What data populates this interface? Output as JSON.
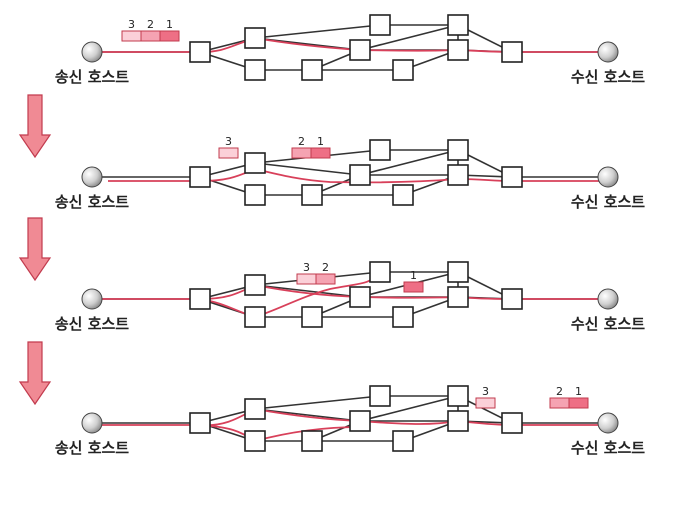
{
  "hosts": {
    "sender": "송신 호스트",
    "receiver": "수신 호스트"
  },
  "colors": {
    "route": "#d8405a",
    "arrow_fill": "#f08a94",
    "arrow_stroke": "#c23b4e",
    "packet_dark": "#ee6f85",
    "packet_mid": "#f5a3b2",
    "packet_light": "#fbd0d8"
  },
  "stages": [
    {
      "packets": [
        {
          "labels": [
            "3",
            "2",
            "1"
          ]
        }
      ]
    },
    {
      "packets": [
        {
          "labels": [
            "3"
          ]
        },
        {
          "labels": [
            "2",
            "1"
          ]
        }
      ]
    },
    {
      "packets": [
        {
          "labels": [
            "3",
            "2"
          ]
        },
        {
          "labels": [
            "1"
          ]
        }
      ]
    },
    {
      "packets": [
        {
          "labels": [
            "3"
          ]
        },
        {
          "labels": [
            "2",
            "1"
          ]
        }
      ]
    }
  ]
}
